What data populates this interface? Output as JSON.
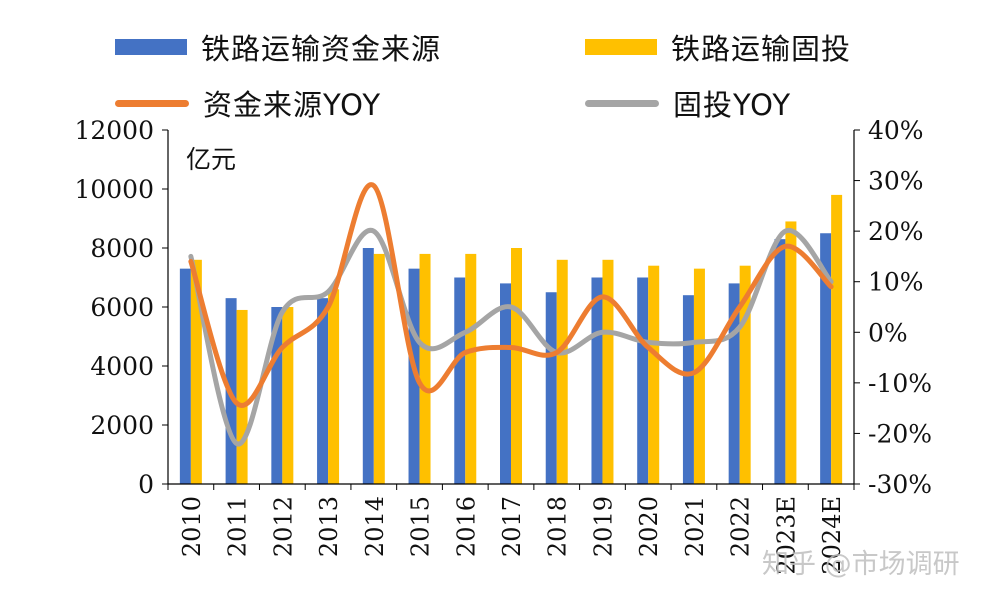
{
  "colors": {
    "bar1": "#4472C4",
    "bar2": "#FFC000",
    "line1": "#ED7D31",
    "line2": "#A5A5A5",
    "axis": "#000000"
  },
  "legend": [
    {
      "label": "铁路运输资金来源",
      "kind": "bar",
      "color": "#4472C4"
    },
    {
      "label": "铁路运输固投",
      "kind": "bar",
      "color": "#FFC000"
    },
    {
      "label": "资金来源YOY",
      "kind": "line",
      "color": "#ED7D31"
    },
    {
      "label": "固投YOY",
      "kind": "line",
      "color": "#A5A5A5"
    }
  ],
  "unit_label": "亿元",
  "watermark": "知乎 @市场调研",
  "chart_data": {
    "type": "bar",
    "categories": [
      "2010",
      "2011",
      "2012",
      "2013",
      "2014",
      "2015",
      "2016",
      "2017",
      "2018",
      "2019",
      "2020",
      "2021",
      "2022",
      "2023E",
      "2024E"
    ],
    "series": [
      {
        "name": "铁路运输资金来源",
        "type": "bar",
        "axis": "left",
        "values": [
          7300,
          6300,
          6000,
          6300,
          8000,
          7300,
          7000,
          6800,
          6500,
          7000,
          7000,
          6400,
          6800,
          8300,
          8500
        ]
      },
      {
        "name": "铁路运输固投",
        "type": "bar",
        "axis": "left",
        "values": [
          7600,
          5900,
          6000,
          6600,
          7800,
          7800,
          7800,
          8000,
          7600,
          7600,
          7400,
          7300,
          7400,
          8900,
          9800
        ]
      },
      {
        "name": "资金来源YOY",
        "type": "line",
        "axis": "right",
        "values": [
          14,
          -14,
          -3,
          5,
          29,
          -10,
          -4,
          -3,
          -4,
          7,
          -3,
          -8,
          5,
          17,
          9
        ]
      },
      {
        "name": "固投YOY",
        "type": "line",
        "axis": "right",
        "values": [
          15,
          -22,
          4,
          8,
          20,
          -2,
          0,
          5,
          -4,
          0,
          -2,
          -2,
          1,
          20,
          10
        ]
      }
    ],
    "ylim_left": [
      0,
      12000
    ],
    "ylim_right": [
      -30,
      40
    ],
    "yticks_left": [
      "0",
      "2000",
      "4000",
      "6000",
      "8000",
      "10000",
      "12000"
    ],
    "yticks_right": [
      "-30%",
      "-20%",
      "-10%",
      "0%",
      "10%",
      "20%",
      "30%",
      "40%"
    ],
    "grid": false,
    "legend_position": "top"
  }
}
